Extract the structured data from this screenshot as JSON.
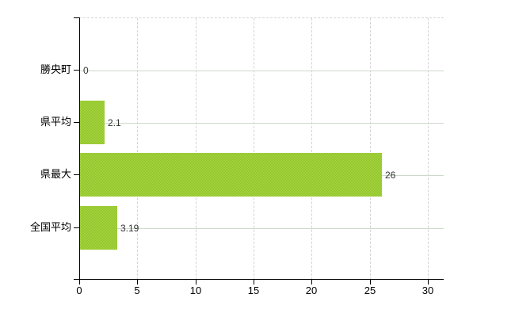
{
  "chart_data": {
    "type": "bar",
    "orientation": "horizontal",
    "title": "",
    "xlabel": "",
    "ylabel": "",
    "categories": [
      "勝央町",
      "県平均",
      "県最大",
      "全国平均"
    ],
    "values": [
      0,
      2.1,
      26,
      3.19
    ],
    "value_labels": [
      "0",
      "2.1",
      "26",
      "3.19"
    ],
    "x_ticks": [
      0,
      5,
      10,
      15,
      20,
      25,
      30
    ],
    "x_tick_labels": [
      "0",
      "5",
      "10",
      "15",
      "20",
      "25",
      "30"
    ],
    "xlim": [
      0,
      30
    ],
    "grid": true,
    "legend": "none",
    "bar_color": "#9bcc36",
    "bar_color_light": "#a7d43f",
    "bar_color_dark": "#8fc42d",
    "gridline_color": "#d6d2d6",
    "category_line_color": "#cfd8cd",
    "axis_color": "#000000",
    "value_text_color": "#333333"
  }
}
